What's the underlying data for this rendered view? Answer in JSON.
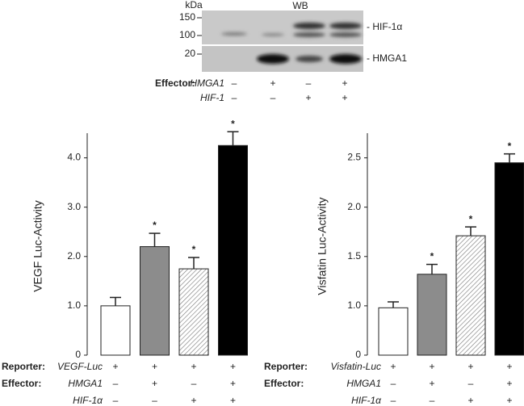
{
  "western_blot": {
    "title": "WB",
    "unit": "kDa",
    "markers": [
      "150",
      "100",
      "20"
    ],
    "bands": [
      "- HIF-1α",
      "- HMGA1"
    ],
    "effector_label": "Effector:",
    "rows": [
      {
        "name": "HMGA1",
        "signs": [
          "–",
          "+",
          "–",
          "+"
        ]
      },
      {
        "name": "HIF-1",
        "signs": [
          "–",
          "–",
          "+",
          "+"
        ]
      }
    ]
  },
  "chart_data": [
    {
      "type": "bar",
      "ylabel": "VEGF Luc-Activity",
      "values": [
        1.0,
        2.2,
        1.75,
        4.25
      ],
      "errors": [
        0.17,
        0.27,
        0.23,
        0.28
      ],
      "markers": [
        null,
        "*",
        "*",
        "*"
      ],
      "fills": [
        "#ffffff",
        "#8c8c8c",
        "hatch",
        "#000000"
      ],
      "ylim": [
        0,
        4.5
      ],
      "yticks": [
        0,
        {
          "value": 1,
          "label": "1.0"
        },
        {
          "value": 2,
          "label": "2.0"
        },
        {
          "value": 3,
          "label": "3.0"
        },
        {
          "value": 4,
          "label": "4.0"
        }
      ],
      "conditions": [
        {
          "label": "Reporter:",
          "name": "VEGF-Luc",
          "signs": [
            "+",
            "+",
            "+",
            "+"
          ]
        },
        {
          "label": "Effector:",
          "name": "HMGA1",
          "signs": [
            "–",
            "+",
            "–",
            "+"
          ]
        },
        {
          "name": "HIF-1α",
          "signs": [
            "–",
            "–",
            "+",
            "+"
          ]
        }
      ]
    },
    {
      "type": "bar",
      "ylabel": "Visfatin Luc-Activity",
      "values": [
        0.98,
        1.32,
        1.71,
        2.45
      ],
      "errors": [
        0.06,
        0.1,
        0.09,
        0.09
      ],
      "markers": [
        null,
        "*",
        "*",
        "*"
      ],
      "fills": [
        "#ffffff",
        "#8c8c8c",
        "hatch",
        "#000000"
      ],
      "ylim": [
        0,
        2.75
      ],
      "ybreak": [
        0,
        0.5
      ],
      "yticks": [
        0,
        {
          "value": 1,
          "label": "1.0"
        },
        1.5,
        {
          "value": 2,
          "label": "2.0"
        },
        2.5
      ],
      "conditions": [
        {
          "label": "Reporter:",
          "name": "Visfatin-Luc",
          "signs": [
            "+",
            "+",
            "+",
            "+"
          ]
        },
        {
          "label": "Effector:",
          "name": "HMGA1",
          "signs": [
            "–",
            "+",
            "–",
            "+"
          ]
        },
        {
          "name": "HIF-1α",
          "signs": [
            "–",
            "–",
            "+",
            "+"
          ]
        }
      ]
    }
  ]
}
